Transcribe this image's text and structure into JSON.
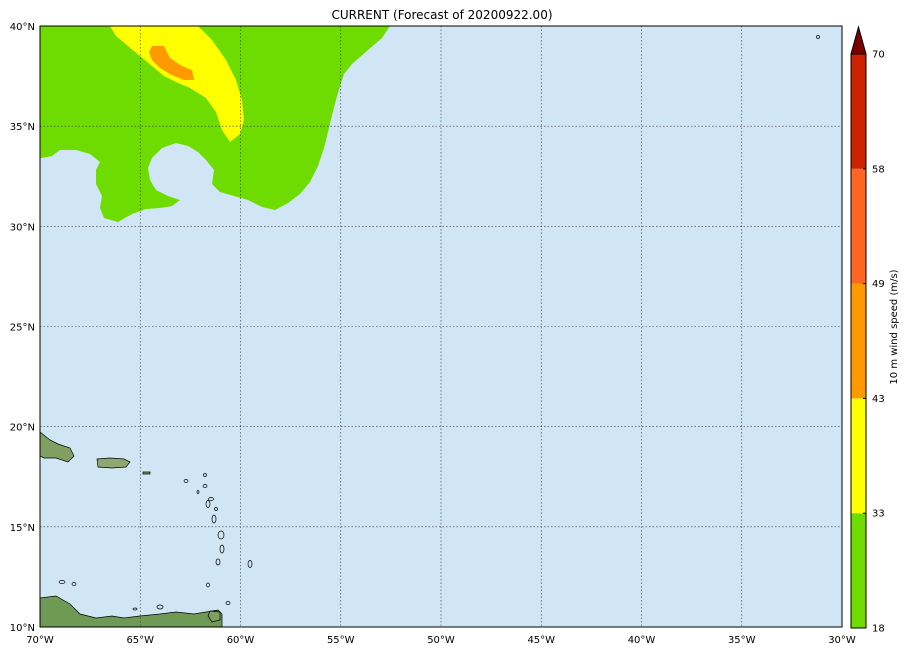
{
  "title": "CURRENT (Forecast of 20200922.00)",
  "map": {
    "lon_range": [
      -70,
      -30
    ],
    "lat_range": [
      10,
      40
    ],
    "lon_ticks": [
      {
        "value": -70,
        "label": "70°W"
      },
      {
        "value": -65,
        "label": "65°W"
      },
      {
        "value": -60,
        "label": "60°W"
      },
      {
        "value": -55,
        "label": "55°W"
      },
      {
        "value": -50,
        "label": "50°W"
      },
      {
        "value": -45,
        "label": "45°W"
      },
      {
        "value": -40,
        "label": "40°W"
      },
      {
        "value": -35,
        "label": "35°W"
      },
      {
        "value": -30,
        "label": "30°W"
      }
    ],
    "lat_ticks": [
      {
        "value": 10,
        "label": "10°N"
      },
      {
        "value": 15,
        "label": "15°N"
      },
      {
        "value": 20,
        "label": "20°N"
      },
      {
        "value": 25,
        "label": "25°N"
      },
      {
        "value": 30,
        "label": "30°N"
      },
      {
        "value": 35,
        "label": "35°N"
      },
      {
        "value": 40,
        "label": "40°N"
      }
    ],
    "ocean_color": "#d0e6f4",
    "gridlines": true
  },
  "colorbar": {
    "label": "10 m wind speed (m/s)",
    "levels": [
      "18",
      "33",
      "43",
      "49",
      "58",
      "70"
    ],
    "colors": [
      "#6fdc00",
      "#ffff00",
      "#ff9900",
      "#ff6622",
      "#cc2200"
    ],
    "extend_color": "#7a0000",
    "extend": "max"
  }
}
